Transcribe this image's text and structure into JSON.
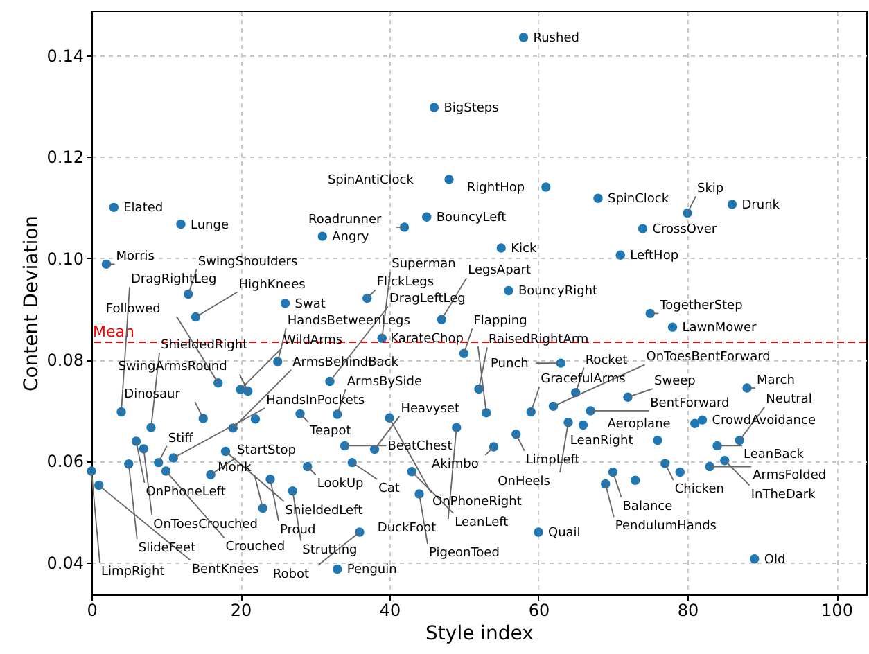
{
  "chart_data": {
    "type": "scatter",
    "xlabel": "Style index",
    "ylabel": "Content Deviation",
    "x": [
      46,
      3,
      12,
      31,
      42,
      45,
      48,
      2,
      13,
      26,
      37,
      14,
      47,
      58,
      61,
      68,
      80,
      86,
      74,
      55,
      71,
      56,
      75,
      78,
      39,
      50,
      63,
      25,
      17,
      20,
      21,
      32,
      4,
      15,
      22,
      8,
      19,
      28,
      33,
      6,
      7,
      18,
      5,
      9,
      11,
      0,
      1,
      10,
      16,
      24,
      27,
      23,
      33,
      29,
      34,
      52,
      65,
      62,
      59,
      49,
      57,
      64,
      53,
      40,
      38,
      54,
      35,
      43,
      44,
      36,
      60,
      88,
      72,
      67,
      81,
      82,
      76,
      87,
      84,
      85,
      77,
      83,
      79,
      70,
      73,
      69,
      89,
      66
    ],
    "values": [
      0.1297,
      0.11,
      0.1067,
      0.1043,
      0.1061,
      0.1081,
      0.1155,
      0.0988,
      0.0929,
      0.0911,
      0.0921,
      0.0884,
      0.0879,
      0.1435,
      0.114,
      0.1118,
      0.1089,
      0.1106,
      0.1058,
      0.102,
      0.1006,
      0.0936,
      0.0891,
      0.0864,
      0.0842,
      0.0812,
      0.0793,
      0.0796,
      0.0754,
      0.0741,
      0.0738,
      0.0757,
      0.0697,
      0.0684,
      0.0683,
      0.0666,
      0.0665,
      0.0693,
      0.0692,
      0.0639,
      0.0624,
      0.0619,
      0.0594,
      0.0597,
      0.0606,
      0.058,
      0.0552,
      0.058,
      0.0573,
      0.0564,
      0.0541,
      0.0507,
      0.0387,
      0.0589,
      0.063,
      0.0742,
      0.0735,
      0.0708,
      0.0697,
      0.0666,
      0.0653,
      0.0676,
      0.0695,
      0.0685,
      0.0623,
      0.0628,
      0.0597,
      0.0579,
      0.0535,
      0.046,
      0.046,
      0.0744,
      0.0726,
      0.0699,
      0.0674,
      0.0681,
      0.0641,
      0.0641,
      0.063,
      0.0601,
      0.0595,
      0.0589,
      0.0578,
      0.0578,
      0.0562,
      0.0555,
      0.0407,
      0.0671
    ],
    "color": "#1f77b4",
    "marker": "circle",
    "xlim": [
      0,
      104
    ],
    "ylim": [
      0.0337,
      0.1487
    ],
    "xticks": [
      0,
      20,
      40,
      60,
      80,
      100
    ],
    "yticks": [
      {
        "value": 0.04,
        "label": "0.04"
      },
      {
        "value": 0.06,
        "label": "0.06"
      },
      {
        "value": 0.08,
        "label": "0.08"
      },
      {
        "value": 0.1,
        "label": "0.10"
      },
      {
        "value": 0.12,
        "label": "0.12"
      },
      {
        "value": 0.14,
        "label": "0.14"
      }
    ],
    "grid": true,
    "ref_lines": [
      {
        "axis": "y",
        "value": 0.0834,
        "label": "Mean",
        "color": "#ff0000",
        "line_style": "dashed"
      }
    ],
    "annotations": [
      {
        "text": "BigSteps",
        "x": 46,
        "y": 0.1297
      },
      {
        "text": "Elated",
        "x": 3,
        "y": 0.11
      },
      {
        "text": "Lunge",
        "x": 12,
        "y": 0.1067
      },
      {
        "text": "Angry",
        "x": 31,
        "y": 0.1043
      },
      {
        "text": "Roadrunner",
        "x": 42,
        "y": 0.1061
      },
      {
        "text": "BouncyLeft",
        "x": 45,
        "y": 0.1081
      },
      {
        "text": "SpinAntiClock",
        "x": 48,
        "y": 0.1155
      },
      {
        "text": "Morris",
        "x": 2,
        "y": 0.0988
      },
      {
        "text": "SwingShoulders",
        "x": 13,
        "y": 0.0929
      },
      {
        "text": "Swat",
        "x": 26,
        "y": 0.0911
      },
      {
        "text": "FlickLegs",
        "x": 37,
        "y": 0.0921
      },
      {
        "text": "HighKnees",
        "x": 14,
        "y": 0.0884
      },
      {
        "text": "LegsApart",
        "x": 47,
        "y": 0.0879
      },
      {
        "text": "Rushed",
        "x": 58,
        "y": 0.1435
      },
      {
        "text": "RightHop",
        "x": 61,
        "y": 0.114
      },
      {
        "text": "SpinClock",
        "x": 68,
        "y": 0.1118
      },
      {
        "text": "Skip",
        "x": 80,
        "y": 0.1089
      },
      {
        "text": "Drunk",
        "x": 86,
        "y": 0.1106
      },
      {
        "text": "CrossOver",
        "x": 74,
        "y": 0.1058
      },
      {
        "text": "Kick",
        "x": 55,
        "y": 0.102
      },
      {
        "text": "LeftHop",
        "x": 71,
        "y": 0.1006
      },
      {
        "text": "BouncyRight",
        "x": 56,
        "y": 0.0936
      },
      {
        "text": "TogetherStep",
        "x": 75,
        "y": 0.0891
      },
      {
        "text": "LawnMower",
        "x": 78,
        "y": 0.0864
      },
      {
        "text": "Superman",
        "x": 39,
        "y": 0.0842
      },
      {
        "text": "Flapping",
        "x": 50,
        "y": 0.0812
      },
      {
        "text": "Punch",
        "x": 63,
        "y": 0.0793
      },
      {
        "text": "HandsBetweenLegs",
        "x": 25,
        "y": 0.0796
      },
      {
        "text": "Followed",
        "x": 17,
        "y": 0.0754
      },
      {
        "text": "WildArms",
        "x": 20,
        "y": 0.0741
      },
      {
        "text": "SwingArmsRound",
        "x": 21,
        "y": 0.0738
      },
      {
        "text": "DragLeftLeg",
        "x": 32,
        "y": 0.0757
      },
      {
        "text": "DragRightLeg",
        "x": 4,
        "y": 0.0697
      },
      {
        "text": "Dinosaur",
        "x": 15,
        "y": 0.0684
      },
      {
        "text": "ShieldedRight",
        "x": 8,
        "y": 0.0666
      },
      {
        "text": "ArmsBehindBack",
        "x": 19,
        "y": 0.0665
      },
      {
        "text": "Teapot",
        "x": 28,
        "y": 0.0693
      },
      {
        "text": "ArmsBySide",
        "x": 33,
        "y": 0.0692
      },
      {
        "text": "OnPhoneLeft",
        "x": 6,
        "y": 0.0639
      },
      {
        "text": "OnToesCrouched",
        "x": 7,
        "y": 0.0624
      },
      {
        "text": "ShieldedLeft",
        "x": 18,
        "y": 0.0619
      },
      {
        "text": "SlideFeet",
        "x": 5,
        "y": 0.0594
      },
      {
        "text": "Stiff",
        "x": 9,
        "y": 0.0597
      },
      {
        "text": "HandsInPockets",
        "x": 11,
        "y": 0.0606
      },
      {
        "text": "LimpRight",
        "x": 0,
        "y": 0.058
      },
      {
        "text": "BentKnees",
        "x": 1,
        "y": 0.0552
      },
      {
        "text": "Crouched",
        "x": 10,
        "y": 0.058
      },
      {
        "text": "StartStop",
        "x": 16,
        "y": 0.0573
      },
      {
        "text": "Proud",
        "x": 24,
        "y": 0.0564
      },
      {
        "text": "Strutting",
        "x": 27,
        "y": 0.0541
      },
      {
        "text": "Monk",
        "x": 23,
        "y": 0.0507
      },
      {
        "text": "Penguin",
        "x": 33,
        "y": 0.0387
      },
      {
        "text": "LookUp",
        "x": 29,
        "y": 0.0589
      },
      {
        "text": "BeatChest",
        "x": 34,
        "y": 0.063
      },
      {
        "text": "RaisedRightArm",
        "x": 52,
        "y": 0.0742
      },
      {
        "text": "Rocket",
        "x": 65,
        "y": 0.0735
      },
      {
        "text": "OnToesBentForward",
        "x": 62,
        "y": 0.0708
      },
      {
        "text": "GracefulArms",
        "x": 59,
        "y": 0.0697
      },
      {
        "text": "DuckFoot",
        "x": 49,
        "y": 0.0666
      },
      {
        "text": "LimpLeft",
        "x": 57,
        "y": 0.0653
      },
      {
        "text": "OnHeels",
        "x": 64,
        "y": 0.0676
      },
      {
        "text": "KarateChop",
        "x": 53,
        "y": 0.0695
      },
      {
        "text": "OnPhoneRight",
        "x": 40,
        "y": 0.0685
      },
      {
        "text": "Heavyset",
        "x": 38,
        "y": 0.0623
      },
      {
        "text": "Akimbo",
        "x": 54,
        "y": 0.0628
      },
      {
        "text": "Cat",
        "x": 35,
        "y": 0.0597
      },
      {
        "text": "LeanLeft",
        "x": 43,
        "y": 0.0579
      },
      {
        "text": "PigeonToed",
        "x": 44,
        "y": 0.0535
      },
      {
        "text": "Robot",
        "x": 36,
        "y": 0.046
      },
      {
        "text": "Quail",
        "x": 60,
        "y": 0.046
      },
      {
        "text": "March",
        "x": 88,
        "y": 0.0744
      },
      {
        "text": "Sweep",
        "x": 72,
        "y": 0.0726
      },
      {
        "text": "BentForward",
        "x": 67,
        "y": 0.0699
      },
      {
        "text": "Aeroplane",
        "x": 81,
        "y": 0.0674
      },
      {
        "text": "CrowdAvoidance",
        "x": 82,
        "y": 0.0681
      },
      {
        "text": "LeanRight",
        "x": 76,
        "y": 0.0641
      },
      {
        "text": "Neutral",
        "x": 87,
        "y": 0.0641
      },
      {
        "text": "LeanBack",
        "x": 84,
        "y": 0.063
      },
      {
        "text": "InTheDark",
        "x": 85,
        "y": 0.0601
      },
      {
        "text": "Chicken",
        "x": 77,
        "y": 0.0595
      },
      {
        "text": "ArmsFolded",
        "x": 83,
        "y": 0.0589
      },
      {
        "text": "Balance",
        "x": 70,
        "y": 0.0578
      },
      {
        "text": "PendulumHands",
        "x": 69,
        "y": 0.0555
      },
      {
        "text": "Old",
        "x": 89,
        "y": 0.0407
      }
    ]
  }
}
